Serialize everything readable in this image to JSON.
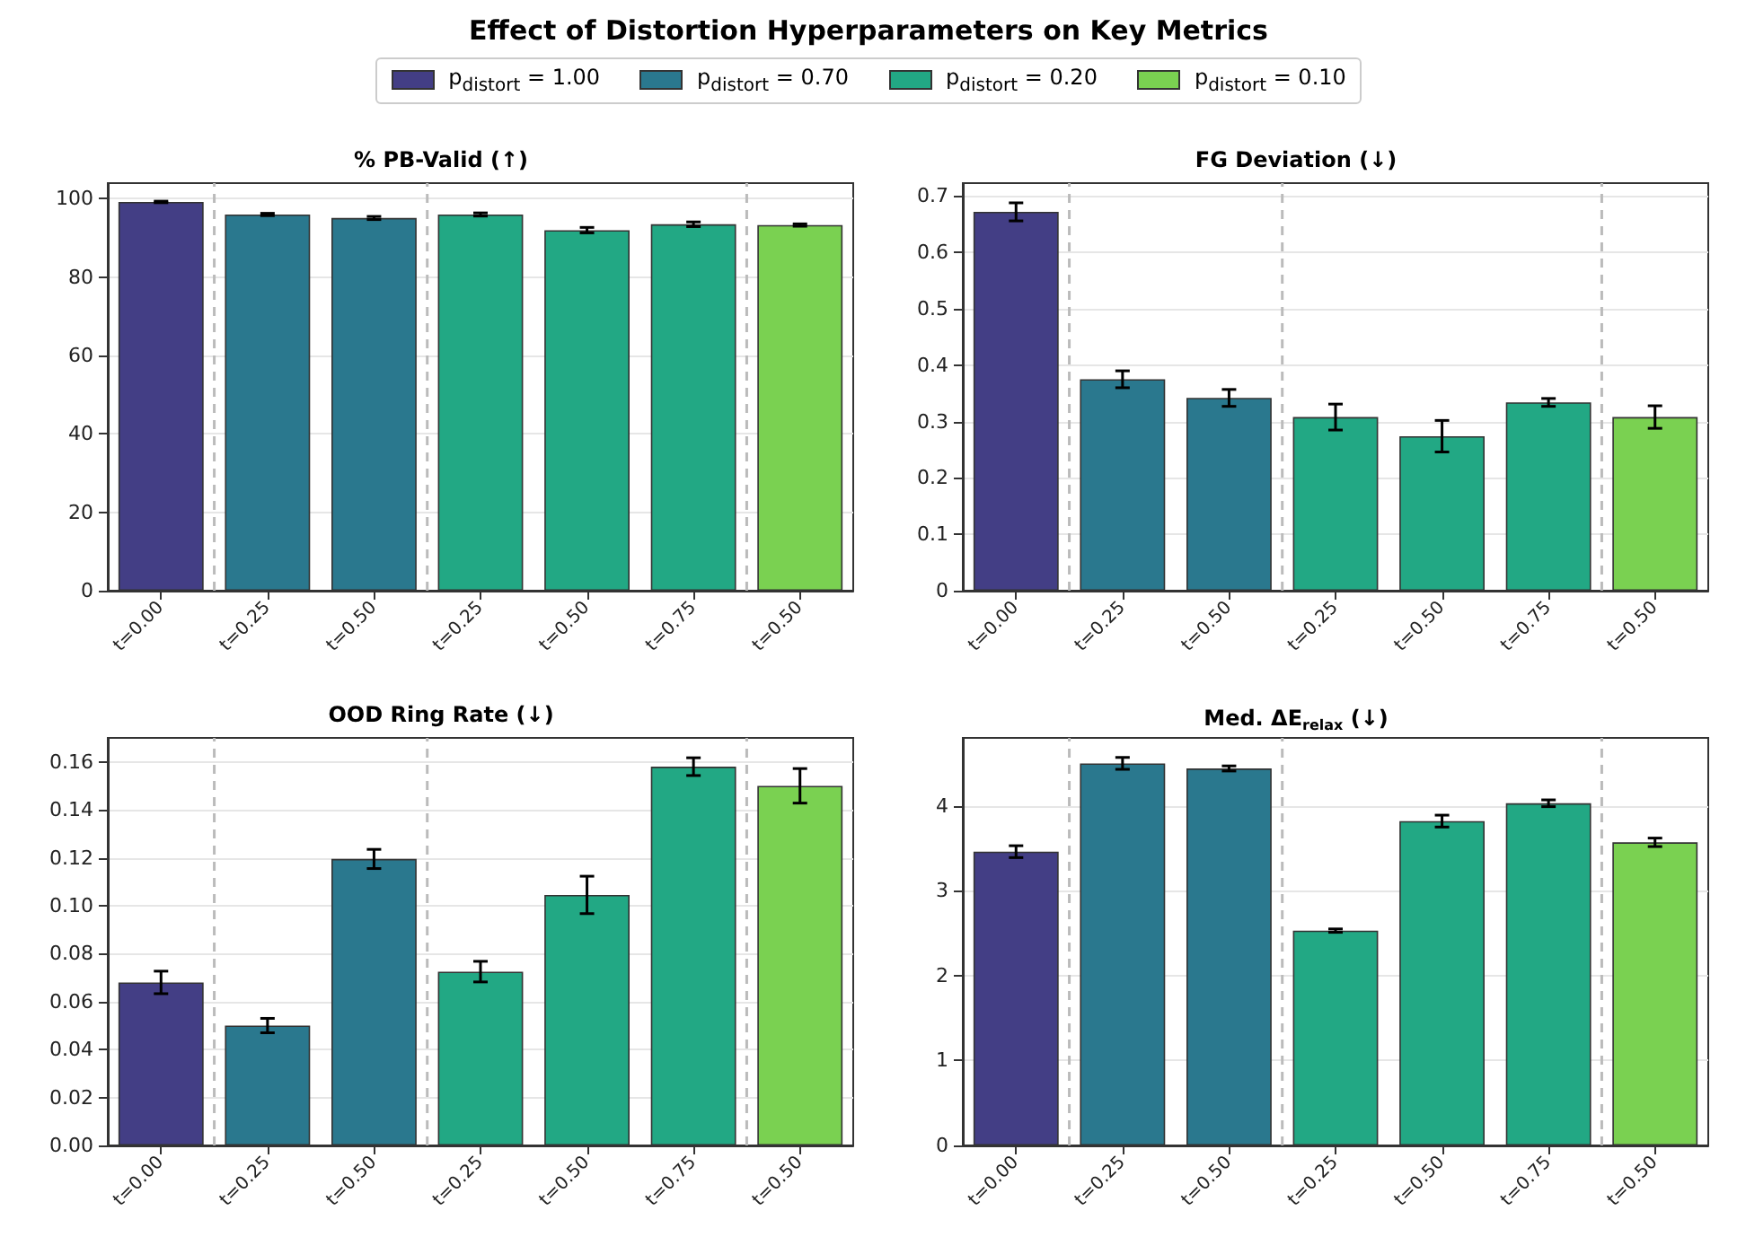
{
  "chart_data": [
    {
      "type": "bar",
      "title": "% PB-Valid (↑)",
      "annotations": [
        "Effect of Distortion Hyperparameters on Key Metrics"
      ],
      "legend": "top",
      "grid": "y",
      "categories": [
        "t=0.00",
        "t=0.25",
        "t=0.50",
        "t=0.25",
        "t=0.50",
        "t=0.75",
        "t=0.50"
      ],
      "ylim": [
        0,
        104
      ],
      "yticks": [
        0,
        20,
        40,
        60,
        80,
        100
      ],
      "series": [
        {
          "name": "p$_{distort}$ = 1.00",
          "color": "#433e85",
          "values": [
            99.2,
            null,
            null,
            null,
            null,
            null,
            null
          ],
          "errors": [
            0.2,
            null,
            null,
            null,
            null,
            null,
            null
          ]
        },
        {
          "name": "p$_{distort}$ = 0.70",
          "color": "#2a788e",
          "values": [
            null,
            96.0,
            95.1,
            null,
            null,
            null,
            null
          ],
          "errors": [
            null,
            0.3,
            0.4,
            null,
            null,
            null,
            null
          ]
        },
        {
          "name": "p$_{distort}$ = 0.20",
          "color": "#22a884",
          "values": [
            null,
            null,
            null,
            96.0,
            92.0,
            93.5,
            null
          ],
          "errors": [
            null,
            null,
            null,
            0.4,
            0.7,
            0.6,
            null
          ]
        },
        {
          "name": "p$_{distort}$ = 0.10",
          "color": "#7ad151",
          "values": [
            null,
            null,
            null,
            null,
            null,
            null,
            93.3
          ],
          "errors": [
            null,
            null,
            null,
            null,
            null,
            null,
            0.3
          ]
        }
      ]
    },
    {
      "type": "bar",
      "title": "FG Deviation (↓)",
      "grid": "y",
      "categories": [
        "t=0.00",
        "t=0.25",
        "t=0.50",
        "t=0.25",
        "t=0.50",
        "t=0.75",
        "t=0.50"
      ],
      "ylim": [
        0,
        0.723
      ],
      "yticks": [
        0,
        0.1,
        0.2,
        0.3,
        0.4,
        0.5,
        0.6,
        0.7
      ],
      "series": [
        {
          "color": "#433e85",
          "values": [
            0.672,
            null,
            null,
            null,
            null,
            null,
            null
          ],
          "errors": [
            0.016,
            null,
            null,
            null,
            null,
            null,
            null
          ]
        },
        {
          "color": "#2a788e",
          "values": [
            null,
            0.375,
            0.342,
            null,
            null,
            null,
            null
          ],
          "errors": [
            null,
            0.015,
            0.015,
            null,
            null,
            null,
            null
          ]
        },
        {
          "color": "#22a884",
          "values": [
            null,
            null,
            null,
            0.308,
            0.274,
            0.334,
            null
          ],
          "errors": [
            null,
            null,
            null,
            0.023,
            0.028,
            0.007,
            null
          ]
        },
        {
          "color": "#7ad151",
          "values": [
            null,
            null,
            null,
            null,
            null,
            null,
            0.308
          ],
          "errors": [
            null,
            null,
            null,
            null,
            null,
            null,
            0.02
          ]
        }
      ]
    },
    {
      "type": "bar",
      "title": "OOD Ring Rate (↓)",
      "grid": "y",
      "categories": [
        "t=0.00",
        "t=0.25",
        "t=0.50",
        "t=0.25",
        "t=0.50",
        "t=0.75",
        "t=0.50"
      ],
      "ylim": [
        0,
        0.17
      ],
      "yticks": [
        {
          "value": 0,
          "label": "0.00"
        },
        {
          "value": 0.02,
          "label": "0.02"
        },
        {
          "value": 0.04,
          "label": "0.04"
        },
        {
          "value": 0.06,
          "label": "0.06"
        },
        {
          "value": 0.08,
          "label": "0.08"
        },
        {
          "value": 0.1,
          "label": "0.10"
        },
        {
          "value": 0.12,
          "label": "0.12"
        },
        {
          "value": 0.14,
          "label": "0.14"
        },
        {
          "value": 0.16,
          "label": "0.16"
        }
      ],
      "series": [
        {
          "color": "#433e85",
          "values": [
            0.068,
            null,
            null,
            null,
            null,
            null,
            null
          ],
          "errors": [
            0.0047,
            null,
            null,
            null,
            null,
            null,
            null
          ]
        },
        {
          "color": "#2a788e",
          "values": [
            null,
            0.05,
            0.1195,
            null,
            null,
            null,
            null
          ],
          "errors": [
            null,
            0.003,
            0.004,
            null,
            null,
            null,
            null
          ]
        },
        {
          "color": "#22a884",
          "values": [
            null,
            null,
            null,
            0.0725,
            0.1045,
            0.158,
            null
          ],
          "errors": [
            null,
            null,
            null,
            0.0043,
            0.0078,
            0.0037,
            null
          ]
        },
        {
          "color": "#7ad151",
          "values": [
            null,
            null,
            null,
            null,
            null,
            null,
            0.15
          ],
          "errors": [
            null,
            null,
            null,
            null,
            null,
            null,
            0.0072
          ]
        }
      ]
    },
    {
      "type": "bar",
      "title": "Med. ΔE$_{relax}$ (↓)",
      "grid": "y",
      "categories": [
        "t=0.00",
        "t=0.25",
        "t=0.50",
        "t=0.25",
        "t=0.50",
        "t=0.75",
        "t=0.50"
      ],
      "ylim": [
        0,
        4.8
      ],
      "yticks": [
        0,
        1,
        2,
        3,
        4
      ],
      "series": [
        {
          "color": "#433e85",
          "values": [
            3.46,
            null,
            null,
            null,
            null,
            null,
            null
          ],
          "errors": [
            0.07,
            null,
            null,
            null,
            null,
            null,
            null
          ]
        },
        {
          "color": "#2a788e",
          "values": [
            null,
            4.5,
            4.44,
            null,
            null,
            null,
            null
          ],
          "errors": [
            null,
            0.07,
            0.03,
            null,
            null,
            null,
            null
          ]
        },
        {
          "color": "#22a884",
          "values": [
            null,
            null,
            null,
            2.53,
            3.82,
            4.03,
            null
          ],
          "errors": [
            null,
            null,
            null,
            0.02,
            0.07,
            0.04,
            null
          ]
        },
        {
          "color": "#7ad151",
          "values": [
            null,
            null,
            null,
            null,
            null,
            null,
            3.57
          ],
          "errors": [
            null,
            null,
            null,
            null,
            null,
            null,
            0.05
          ]
        }
      ]
    }
  ]
}
